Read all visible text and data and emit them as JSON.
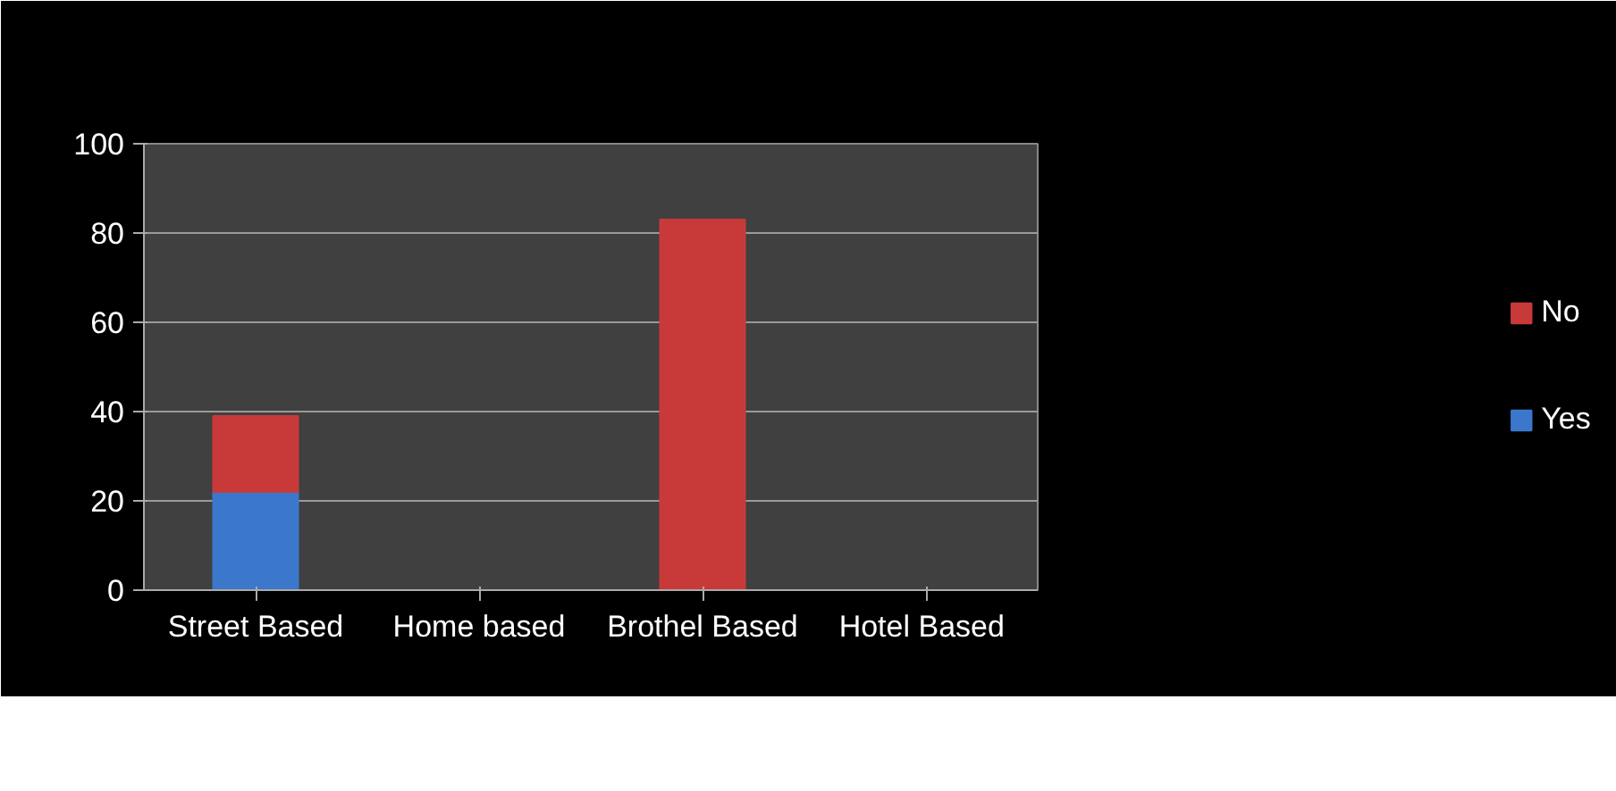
{
  "chart_data": {
    "type": "bar",
    "stacked": true,
    "categories": [
      "Street Based",
      "Home based",
      "Brothel Based",
      "Hotel  Based"
    ],
    "series": [
      {
        "name": "Yes",
        "color": "#3b78cc",
        "values": [
          22,
          0,
          0,
          0
        ]
      },
      {
        "name": "No",
        "color": "#c83a3a",
        "values": [
          17,
          0,
          83,
          0
        ]
      }
    ],
    "ylim": [
      0,
      100
    ],
    "yticks": [
      0,
      20,
      40,
      60,
      80,
      100
    ],
    "grid": "y",
    "legend": "right"
  }
}
